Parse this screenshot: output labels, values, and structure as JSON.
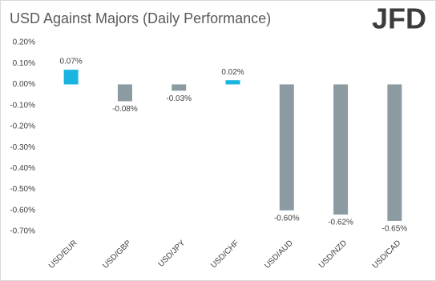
{
  "chart_data": {
    "type": "bar",
    "title": "USD Against Majors (Daily Performance)",
    "logo": "JFD",
    "categories": [
      "USD/EUR",
      "USD/GBP",
      "USD/JPY",
      "USD/CHF",
      "USD/AUD",
      "USD/NZD",
      "USD/CAD"
    ],
    "values": [
      0.07,
      -0.08,
      -0.03,
      0.02,
      -0.6,
      -0.62,
      -0.65
    ],
    "value_labels": [
      "0.07%",
      "-0.08%",
      "-0.03%",
      "0.02%",
      "-0.60%",
      "-0.62%",
      "-0.65%"
    ],
    "colors": [
      "#19b5e0",
      "#8c9ba1",
      "#8c9ba1",
      "#19b5e0",
      "#8c9ba1",
      "#8c9ba1",
      "#8c9ba1"
    ],
    "ylim": [
      -0.7,
      0.2
    ],
    "yticks": [
      {
        "value": 0.2,
        "label": "0.20%"
      },
      {
        "value": 0.1,
        "label": "0.10%"
      },
      {
        "value": 0,
        "label": "0.00%"
      },
      {
        "value": -0.1,
        "label": "-0.10%"
      },
      {
        "value": -0.2,
        "label": "-0.20%"
      },
      {
        "value": -0.3,
        "label": "-0.30%"
      },
      {
        "value": -0.4,
        "label": "-0.40%"
      },
      {
        "value": -0.5,
        "label": "-0.50%"
      },
      {
        "value": -0.6,
        "label": "-0.60%"
      },
      {
        "value": -0.7,
        "label": "-0.70%"
      }
    ],
    "grid": false
  }
}
